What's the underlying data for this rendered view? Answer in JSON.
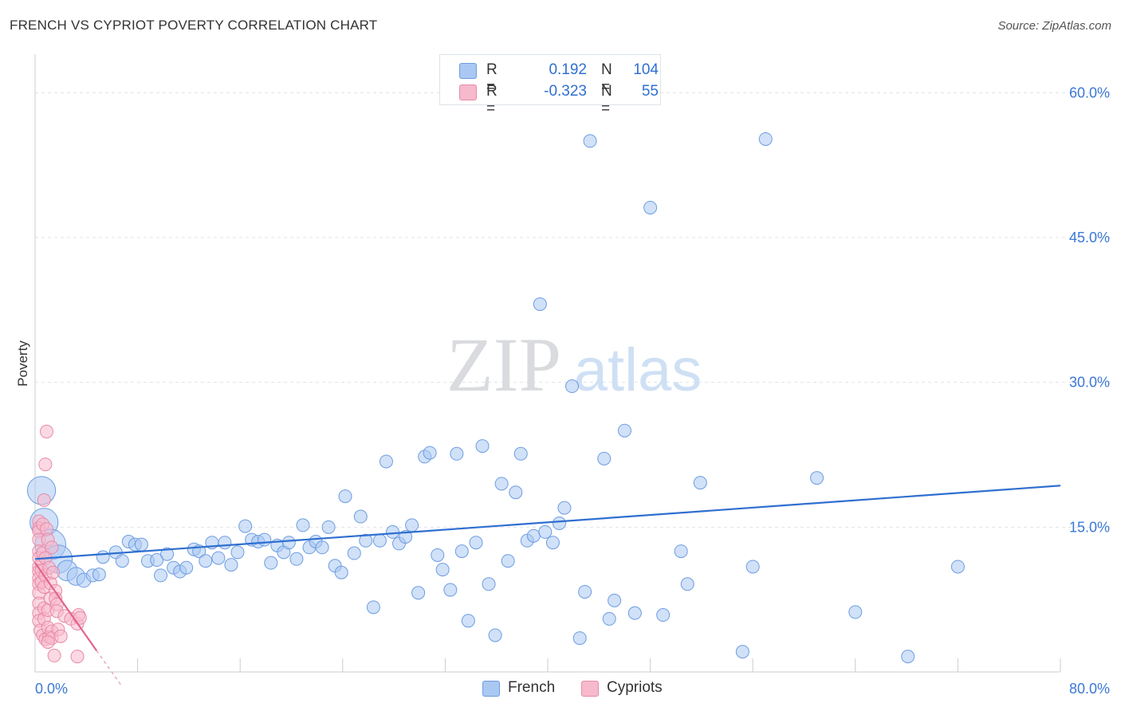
{
  "title": "FRENCH VS CYPRIOT POVERTY CORRELATION CHART",
  "source": "Source: ZipAtlas.com",
  "watermark": {
    "zip": "ZIP",
    "atlas": "atlas"
  },
  "legend": {
    "rows": [
      {
        "r_label": "R =",
        "r_value": "0.192",
        "n_label": "N =",
        "n_value": "104",
        "color": "#a9c8f2",
        "border": "#6e9de0"
      },
      {
        "r_label": "R =",
        "r_value": "-0.323",
        "n_label": "N =",
        "n_value": "55",
        "color": "#f7b9cc",
        "border": "#e88aa8"
      }
    ]
  },
  "bottom_legend": [
    {
      "label": "French",
      "color": "#a9c8f2",
      "border": "#6e9de0"
    },
    {
      "label": "Cypriots",
      "color": "#f7b9cc",
      "border": "#e88aa8"
    }
  ],
  "chart_data": {
    "type": "scatter",
    "title": "FRENCH VS CYPRIOT POVERTY CORRELATION CHART",
    "xlabel": "",
    "ylabel": "Poverty",
    "xlim": [
      0,
      80
    ],
    "ylim": [
      0,
      63
    ],
    "x_tick_labels": [
      "0.0%",
      "80.0%"
    ],
    "y_ticks": [
      15,
      30,
      45,
      60
    ],
    "y_tick_labels": [
      "15.0%",
      "30.0%",
      "45.0%",
      "60.0%"
    ],
    "grid": true,
    "series": [
      {
        "name": "French",
        "color": "#6e9de0",
        "fill": "#a9c8f2",
        "trend": {
          "x": [
            0,
            80
          ],
          "y": [
            11.7,
            19.3
          ]
        },
        "points": [
          [
            0.5,
            18.8,
            2.2
          ],
          [
            0.7,
            15.5,
            2.2
          ],
          [
            1.2,
            13.2,
            2.4
          ],
          [
            1.8,
            11.7,
            2.2
          ],
          [
            2.5,
            10.5,
            1.6
          ],
          [
            3.2,
            9.9,
            1.4
          ],
          [
            3.8,
            9.5,
            1.1
          ],
          [
            4.5,
            10.0,
            1
          ],
          [
            5.0,
            10.1,
            1
          ],
          [
            5.3,
            11.9,
            1
          ],
          [
            6.3,
            12.4,
            1
          ],
          [
            6.8,
            11.5,
            1
          ],
          [
            7.3,
            13.5,
            1
          ],
          [
            7.8,
            13.2,
            1
          ],
          [
            8.3,
            13.2,
            1
          ],
          [
            8.8,
            11.5,
            1
          ],
          [
            9.5,
            11.6,
            1
          ],
          [
            9.8,
            10.0,
            1
          ],
          [
            10.3,
            12.2,
            1
          ],
          [
            10.8,
            10.8,
            1
          ],
          [
            11.3,
            10.4,
            1
          ],
          [
            11.8,
            10.8,
            1
          ],
          [
            12.4,
            12.7,
            1
          ],
          [
            12.8,
            12.5,
            1
          ],
          [
            13.3,
            11.5,
            1
          ],
          [
            13.8,
            13.4,
            1
          ],
          [
            14.3,
            11.8,
            1
          ],
          [
            14.8,
            13.4,
            1
          ],
          [
            15.3,
            11.1,
            1
          ],
          [
            15.8,
            12.4,
            1
          ],
          [
            16.4,
            15.1,
            1
          ],
          [
            16.9,
            13.7,
            1
          ],
          [
            17.4,
            13.5,
            1
          ],
          [
            17.9,
            13.7,
            1
          ],
          [
            18.4,
            11.3,
            1
          ],
          [
            18.9,
            13.1,
            1
          ],
          [
            19.4,
            12.4,
            1
          ],
          [
            19.8,
            13.4,
            1
          ],
          [
            20.4,
            11.7,
            1
          ],
          [
            20.9,
            15.2,
            1
          ],
          [
            21.4,
            12.9,
            1
          ],
          [
            21.9,
            13.5,
            1
          ],
          [
            22.4,
            12.9,
            1
          ],
          [
            22.9,
            15.0,
            1
          ],
          [
            23.4,
            11.0,
            1
          ],
          [
            23.9,
            10.3,
            1
          ],
          [
            24.2,
            18.2,
            1
          ],
          [
            24.9,
            12.3,
            1
          ],
          [
            25.4,
            16.1,
            1
          ],
          [
            25.8,
            13.6,
            1
          ],
          [
            26.4,
            6.7,
            1
          ],
          [
            26.9,
            13.6,
            1
          ],
          [
            27.4,
            21.8,
            1
          ],
          [
            27.9,
            14.5,
            1
          ],
          [
            28.4,
            13.3,
            1
          ],
          [
            28.9,
            14.0,
            1
          ],
          [
            29.4,
            15.2,
            1
          ],
          [
            29.9,
            8.2,
            1
          ],
          [
            30.4,
            22.3,
            1
          ],
          [
            30.8,
            22.7,
            1
          ],
          [
            31.4,
            12.1,
            1
          ],
          [
            31.8,
            10.6,
            1
          ],
          [
            32.4,
            8.5,
            1
          ],
          [
            32.9,
            22.6,
            1
          ],
          [
            33.3,
            12.5,
            1
          ],
          [
            33.8,
            5.3,
            1
          ],
          [
            34.4,
            13.4,
            1
          ],
          [
            34.9,
            23.4,
            1
          ],
          [
            35.4,
            9.1,
            1
          ],
          [
            35.9,
            3.8,
            1
          ],
          [
            36.4,
            19.5,
            1
          ],
          [
            36.9,
            11.5,
            1
          ],
          [
            37.5,
            18.6,
            1
          ],
          [
            37.9,
            22.6,
            1
          ],
          [
            38.4,
            13.6,
            1
          ],
          [
            38.9,
            14.1,
            1
          ],
          [
            39.4,
            38.1,
            1
          ],
          [
            39.8,
            14.5,
            1
          ],
          [
            40.4,
            13.4,
            1
          ],
          [
            40.9,
            15.4,
            1
          ],
          [
            41.3,
            17.0,
            1
          ],
          [
            41.9,
            29.6,
            1
          ],
          [
            42.5,
            3.5,
            1
          ],
          [
            42.9,
            8.3,
            1
          ],
          [
            43.3,
            55.0,
            1
          ],
          [
            44.4,
            22.1,
            1
          ],
          [
            44.8,
            5.5,
            1
          ],
          [
            45.2,
            7.4,
            1
          ],
          [
            46.0,
            25.0,
            1
          ],
          [
            46.8,
            6.1,
            1
          ],
          [
            48.0,
            48.1,
            1
          ],
          [
            49.0,
            5.9,
            1
          ],
          [
            50.4,
            12.5,
            1
          ],
          [
            50.9,
            9.1,
            1
          ],
          [
            51.9,
            19.6,
            1
          ],
          [
            55.2,
            2.1,
            1
          ],
          [
            56.0,
            10.9,
            1
          ],
          [
            57.0,
            55.2,
            1
          ],
          [
            61.0,
            20.1,
            1
          ],
          [
            64.0,
            6.2,
            1
          ],
          [
            68.1,
            1.6,
            1
          ],
          [
            72.0,
            10.9,
            1
          ]
        ]
      },
      {
        "name": "Cypriots",
        "color": "#e88aa8",
        "fill": "#f7b9cc",
        "trend": {
          "x": [
            0,
            4.8
          ],
          "y": [
            11.3,
            2.2
          ]
        },
        "trend_dashed": {
          "x": [
            4.8,
            10.0
          ],
          "y": [
            2.2,
            -7.5
          ]
        },
        "points": [
          [
            0.3,
            15.6,
            1
          ],
          [
            0.3,
            14.9,
            1
          ],
          [
            0.3,
            14.6,
            1
          ],
          [
            0.3,
            13.7,
            1
          ],
          [
            0.3,
            12.5,
            1
          ],
          [
            0.3,
            11.8,
            1
          ],
          [
            0.3,
            10.9,
            1
          ],
          [
            0.3,
            10.4,
            1
          ],
          [
            0.3,
            9.7,
            1
          ],
          [
            0.3,
            9.1,
            1
          ],
          [
            0.3,
            8.2,
            1
          ],
          [
            0.3,
            7.1,
            1
          ],
          [
            0.3,
            6.1,
            1
          ],
          [
            0.3,
            5.3,
            1
          ],
          [
            0.4,
            4.3,
            1
          ],
          [
            0.5,
            10.5,
            1
          ],
          [
            0.5,
            9.3,
            1
          ],
          [
            0.6,
            15.3,
            1
          ],
          [
            0.6,
            12.3,
            1
          ],
          [
            0.6,
            3.8,
            1
          ],
          [
            0.7,
            17.8,
            1
          ],
          [
            0.7,
            8.8,
            1
          ],
          [
            0.7,
            6.6,
            1
          ],
          [
            0.7,
            5.5,
            1
          ],
          [
            0.8,
            21.5,
            1
          ],
          [
            0.8,
            11.8,
            1
          ],
          [
            0.8,
            10.0,
            1
          ],
          [
            0.8,
            3.4,
            1
          ],
          [
            0.9,
            24.9,
            1
          ],
          [
            0.9,
            14.8,
            1
          ],
          [
            1.0,
            13.7,
            1
          ],
          [
            1.0,
            6.4,
            1
          ],
          [
            1.0,
            4.6,
            1
          ],
          [
            1.1,
            10.8,
            1
          ],
          [
            1.1,
            3.6,
            1
          ],
          [
            1.2,
            9.2,
            1
          ],
          [
            1.2,
            7.6,
            1
          ],
          [
            1.3,
            12.9,
            1
          ],
          [
            1.3,
            4.2,
            1
          ],
          [
            1.3,
            3.5,
            1
          ],
          [
            1.4,
            10.3,
            1
          ],
          [
            1.5,
            1.7,
            1
          ],
          [
            1.6,
            8.4,
            1
          ],
          [
            1.6,
            7.6,
            1
          ],
          [
            1.7,
            7.0,
            1
          ],
          [
            1.7,
            6.3,
            1
          ],
          [
            1.8,
            4.4,
            1
          ],
          [
            2.0,
            3.7,
            1
          ],
          [
            2.3,
            5.8,
            1
          ],
          [
            2.8,
            5.5,
            1
          ],
          [
            3.3,
            5.0,
            1
          ],
          [
            3.3,
            1.6,
            1
          ],
          [
            3.4,
            5.9,
            1
          ],
          [
            3.5,
            5.6,
            1
          ],
          [
            1.0,
            3.1,
            1
          ]
        ]
      }
    ]
  }
}
